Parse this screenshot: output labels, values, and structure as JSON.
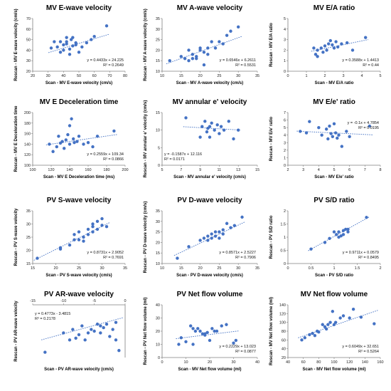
{
  "colors": {
    "point": "#4472c4",
    "trend": "#4472c4",
    "axis": "#7f7f7f"
  },
  "chart_data": [
    {
      "type": "scatter",
      "title": "MV E-wave velocity",
      "xlabel": "Scan - MV E-wave velocity (cm/s)",
      "ylabel": "Rescan - MV E-wave velocity (cm/s)",
      "xlim": [
        20,
        80
      ],
      "ylim": [
        20,
        70
      ],
      "xticks": [
        20,
        30,
        40,
        50,
        60,
        70,
        80
      ],
      "yticks": [
        20,
        30,
        40,
        50,
        60,
        70
      ],
      "x": [
        32,
        34,
        36,
        38,
        38,
        40,
        40,
        42,
        42,
        42,
        44,
        44,
        45,
        46,
        46,
        48,
        48,
        50,
        52,
        55,
        58,
        60,
        68
      ],
      "y": [
        42,
        48,
        43,
        38,
        48,
        40,
        45,
        46,
        48,
        52,
        41,
        36,
        50,
        44,
        52,
        47,
        45,
        38,
        43,
        47,
        50,
        53,
        63
      ],
      "trend": {
        "slope": 0.4433,
        "intercept": 24.225
      },
      "equation": "y = 0.4433x + 24.225",
      "r2": "R² = 0.2649",
      "eq_pos": "bottom-right"
    },
    {
      "type": "scatter",
      "title": "MV A-wave velocity",
      "xlabel": "Scan - MV A-wave velocity (cm/s)",
      "ylabel": "Rescan - MV A-wave velocity (cm/s)",
      "xlim": [
        10,
        35
      ],
      "ylim": [
        10,
        35
      ],
      "xticks": [
        10,
        15,
        20,
        25,
        30,
        35
      ],
      "yticks": [
        10,
        15,
        20,
        25,
        30,
        35
      ],
      "x": [
        12,
        15,
        16,
        17,
        17,
        18,
        18,
        19,
        19,
        20,
        20,
        21,
        21,
        22,
        22,
        23,
        24,
        25,
        26,
        27,
        28,
        30
      ],
      "y": [
        15,
        17,
        16,
        20,
        15,
        18,
        16,
        16,
        17,
        20,
        21,
        13,
        19,
        21,
        18,
        24,
        21,
        24,
        23,
        27,
        29,
        31
      ],
      "trend": {
        "slope": 0.6546,
        "intercept": 6.2611
      },
      "equation": "y = 0.6546x + 6.2611",
      "r2": "R² = 0.5531",
      "eq_pos": "bottom-right"
    },
    {
      "type": "scatter",
      "title": "MV E/A ratio",
      "xlabel": "Scan - MV E/A ratio",
      "ylabel": "Rescan - MV E/A ratio",
      "xlim": [
        0,
        5
      ],
      "ylim": [
        0,
        5
      ],
      "xticks": [
        0,
        1,
        2,
        3,
        4,
        5
      ],
      "yticks": [
        0,
        1,
        2,
        3,
        4,
        5
      ],
      "x": [
        1.4,
        1.5,
        1.6,
        1.6,
        1.8,
        1.9,
        2.0,
        2.1,
        2.2,
        2.3,
        2.4,
        2.5,
        2.6,
        2.7,
        2.9,
        3.2,
        3.5,
        4.2
      ],
      "y": [
        2.2,
        1.6,
        2.0,
        1.4,
        2.2,
        1.8,
        2.4,
        2.0,
        2.6,
        2.9,
        2.5,
        2.2,
        2.8,
        2.3,
        2.6,
        2.7,
        2.0,
        3.2
      ],
      "trend": {
        "slope": 0.3588,
        "intercept": 1.4413
      },
      "equation": "y = 0.3588x + 1.4413",
      "r2": "R² = 0.44",
      "eq_pos": "bottom-right"
    },
    {
      "type": "scatter",
      "title": "MV E Deceleration time",
      "xlabel": "Scan - MV E Deceleration time (ms)",
      "ylabel": "Rescan - MV E Deceleration time",
      "xlim": [
        100,
        200
      ],
      "ylim": [
        100,
        200
      ],
      "xticks": [
        100,
        120,
        140,
        160,
        180,
        200
      ],
      "yticks": [
        100,
        120,
        140,
        160,
        180,
        200
      ],
      "x": [
        118,
        122,
        126,
        128,
        130,
        132,
        134,
        136,
        138,
        140,
        140,
        142,
        144,
        145,
        148,
        150,
        155,
        160,
        165,
        170,
        188
      ],
      "y": [
        140,
        126,
        135,
        155,
        142,
        145,
        132,
        148,
        158,
        140,
        175,
        188,
        150,
        143,
        145,
        155,
        140,
        143,
        135,
        155,
        165
      ],
      "trend": {
        "slope": 0.2559,
        "intercept": 109.34
      },
      "equation": "y = 0.2559x + 109.34",
      "r2": "R² = 0.0866",
      "eq_pos": "bottom-right"
    },
    {
      "type": "scatter",
      "title": "MV annular e' velocity",
      "xlabel": "Scan - MV annular e' velocity (cm/s)",
      "ylabel": "Rescan - MV annular e' velocity (cm/s)",
      "xlim": [
        5,
        15
      ],
      "ylim": [
        0,
        15
      ],
      "xticks": [
        5,
        7,
        9,
        11,
        13,
        15
      ],
      "yticks": [
        0,
        5,
        10,
        15
      ],
      "x": [
        7.5,
        9.0,
        9.2,
        9.5,
        9.7,
        9.8,
        10.0,
        10.0,
        10.2,
        10.5,
        10.8,
        11.0,
        11.2,
        11.5,
        12.0,
        12.5,
        13.0
      ],
      "y": [
        13.5,
        8.0,
        11.0,
        12.5,
        9.5,
        10.5,
        11.0,
        8.0,
        12.0,
        10.0,
        11.5,
        9.0,
        11.0,
        10.0,
        12.5,
        7.5,
        10.0
      ],
      "trend": {
        "slope": -0.1587,
        "intercept": 12.116
      },
      "equation": "y = -0.1587x + 12.116",
      "r2": "R² = 0.0171",
      "eq_pos": "bottom-left"
    },
    {
      "type": "scatter",
      "title": "MV E/e' ratio",
      "xlabel": "Scan - MV E/e' ratio",
      "ylabel": "Rescan - MV E/e' ratio",
      "xlim": [
        2,
        8
      ],
      "ylim": [
        0,
        7
      ],
      "xticks": [
        2,
        3,
        4,
        5,
        6,
        7,
        8
      ],
      "yticks": [
        0,
        1,
        2,
        3,
        4,
        5,
        6,
        7
      ],
      "x": [
        2.8,
        3.2,
        3.4,
        4.0,
        4.2,
        4.5,
        4.6,
        4.7,
        4.8,
        4.9,
        5.0,
        5.1,
        5.2,
        5.3,
        5.5,
        5.8,
        6.0,
        7.3
      ],
      "y": [
        4.5,
        4.3,
        5.8,
        5.0,
        4.0,
        4.8,
        3.5,
        5.2,
        4.2,
        3.8,
        5.5,
        4.3,
        3.6,
        4.0,
        2.5,
        4.5,
        3.8,
        5.2
      ],
      "trend": {
        "slope": -0.1,
        "intercept": 4.7854
      },
      "equation": "y = -0.1x + 4.7854",
      "r2": "R² = 0.0195",
      "eq_pos": "top-right"
    },
    {
      "type": "scatter",
      "title": "PV S-wave velocity",
      "xlabel": "Scan - PV S-wave velocity (cm/s)",
      "ylabel": "Rescan - PV S-wave velocity",
      "xlim": [
        15,
        35
      ],
      "ylim": [
        15,
        35
      ],
      "xticks": [
        15,
        20,
        25,
        30,
        35
      ],
      "yticks": [
        15,
        20,
        25,
        30,
        35
      ],
      "x": [
        16,
        21,
        21,
        23,
        24,
        24,
        25,
        25,
        26,
        26,
        27,
        27,
        28,
        28,
        28,
        29,
        29,
        30,
        30,
        31
      ],
      "y": [
        17,
        21,
        20.5,
        22,
        26,
        24,
        24,
        27,
        23.5,
        25,
        28,
        26,
        29,
        30,
        27,
        28,
        31,
        32,
        29.5,
        29
      ],
      "trend": {
        "slope": 0.8731,
        "intercept": 2.9052
      },
      "equation": "y = 0.8731x + 2.9052",
      "r2": "R² = 0.7691",
      "eq_pos": "bottom-right"
    },
    {
      "type": "scatter",
      "title": "PV D-wave velocity",
      "xlabel": "Scan - PV D-wave velocity (cm/s)",
      "ylabel": "Rescan - PV D-wave velocity (cm/s)",
      "xlim": [
        10,
        35
      ],
      "ylim": [
        10,
        35
      ],
      "xticks": [
        10,
        15,
        20,
        25,
        30,
        35
      ],
      "yticks": [
        10,
        15,
        20,
        25,
        30,
        35
      ],
      "x": [
        14,
        17,
        20,
        21,
        22,
        22,
        23,
        23,
        24,
        24,
        25,
        25,
        26,
        26,
        27,
        28,
        29,
        31
      ],
      "y": [
        12.5,
        18,
        21,
        22,
        21,
        23,
        22,
        24,
        23,
        25,
        22,
        25,
        26,
        24,
        29,
        27,
        28,
        32
      ],
      "trend": {
        "slope": 0.8571,
        "intercept": 2.5227
      },
      "equation": "y = 0.8571x + 2.5227",
      "r2": "R² = 0.7906",
      "eq_pos": "bottom-right"
    },
    {
      "type": "scatter",
      "title": "PV S/D ratio",
      "xlabel": "Scan - PV S/D ratio",
      "ylabel": "Rescan - PV S/D ratio",
      "xlim": [
        0,
        2
      ],
      "ylim": [
        0,
        2
      ],
      "xticks": [
        0,
        0.5,
        1,
        1.5,
        2
      ],
      "yticks": [
        0,
        0.5,
        1,
        1.5,
        2
      ],
      "x": [
        0.5,
        0.8,
        0.9,
        1.0,
        1.05,
        1.1,
        1.1,
        1.15,
        1.2,
        1.2,
        1.25,
        1.3,
        1.3,
        1.7
      ],
      "y": [
        0.55,
        0.8,
        0.95,
        1.2,
        1.1,
        1.0,
        1.2,
        1.05,
        1.25,
        1.1,
        1.3,
        1.2,
        1.3,
        1.75
      ],
      "trend": {
        "slope": 0.9711,
        "intercept": 0.0579
      },
      "equation": "y = 0.9711x + 0.0579",
      "r2": "R² = 0.8495",
      "eq_pos": "bottom-right"
    },
    {
      "type": "scatter",
      "title": "PV AR-wave velocity",
      "xlabel": "Scan - PV AR-wave velocity (cm/s)",
      "ylabel": "Rescan - PV AR-wave velocity",
      "xlim": [
        -15,
        0
      ],
      "ylim": [
        -15,
        0
      ],
      "xticks": [
        -15,
        -10,
        -5,
        0
      ],
      "yticks": [],
      "x": [
        -13,
        -10,
        -9,
        -8.5,
        -8,
        -7.5,
        -7,
        -6.5,
        -6,
        -5.5,
        -5,
        -4.5,
        -4,
        -4,
        -3.5,
        -3,
        -2.5,
        -2,
        -1.5,
        -1.5,
        -1
      ],
      "y": [
        -13.5,
        -8,
        -10,
        -7,
        -9.5,
        -8.5,
        -6,
        -10,
        -8,
        -7,
        -7.5,
        -5.5,
        -6,
        -8,
        -6.5,
        -5.5,
        -9,
        -7,
        -5,
        -10,
        -13
      ],
      "trend": {
        "slope": 0.4773,
        "intercept": -3.4815
      },
      "equation": "y = 0.4773x - 3.4815",
      "r2": "R² = 0.2178",
      "eq_pos": "top-left"
    },
    {
      "type": "scatter",
      "title": "PV Net flow volume",
      "xlabel": "Scan - MV Net flow volume (ml)",
      "ylabel": "Rescan - PV Net flow volume (ml)",
      "xlim": [
        0,
        40
      ],
      "ylim": [
        0,
        40
      ],
      "xticks": [
        0,
        10,
        20,
        30,
        40
      ],
      "yticks": [
        0,
        10,
        20,
        30,
        40
      ],
      "x": [
        7,
        8,
        10,
        12,
        13,
        13,
        14,
        15,
        16,
        17,
        18,
        18,
        19,
        20,
        21,
        22,
        23,
        25,
        27,
        30,
        31
      ],
      "y": [
        10,
        15,
        12,
        24,
        22,
        10,
        20,
        22,
        20,
        18,
        17,
        18,
        19,
        13,
        22,
        20,
        20,
        24,
        25,
        11,
        13
      ],
      "trend": {
        "slope": 0.2229,
        "intercept": 13.023
      },
      "equation": "y = 0.2229x + 13.023",
      "r2": "R² = 0.0877",
      "eq_pos": "bottom-right"
    },
    {
      "type": "scatter",
      "title": "MV Net flow volume",
      "xlabel": "Scan - MV Net flow volume (ml)",
      "ylabel": "Rescan - MV Net flow volume (ml)",
      "xlim": [
        40,
        160
      ],
      "ylim": [
        20,
        140
      ],
      "xticks": [
        40,
        60,
        80,
        100,
        120,
        140,
        160
      ],
      "yticks": [
        20,
        40,
        60,
        80,
        100,
        120,
        140
      ],
      "x": [
        58,
        62,
        68,
        72,
        75,
        78,
        80,
        85,
        88,
        90,
        92,
        95,
        98,
        100,
        102,
        108,
        112,
        120,
        125,
        135,
        152
      ],
      "y": [
        60,
        65,
        72,
        75,
        70,
        80,
        78,
        95,
        90,
        85,
        95,
        100,
        125,
        95,
        100,
        110,
        115,
        110,
        130,
        112,
        97
      ],
      "trend": {
        "slope": 0.6049,
        "intercept": 32.651
      },
      "equation": "y = 0.6049x + 32.651",
      "r2": "R² = 0.5264",
      "eq_pos": "bottom-right"
    }
  ]
}
